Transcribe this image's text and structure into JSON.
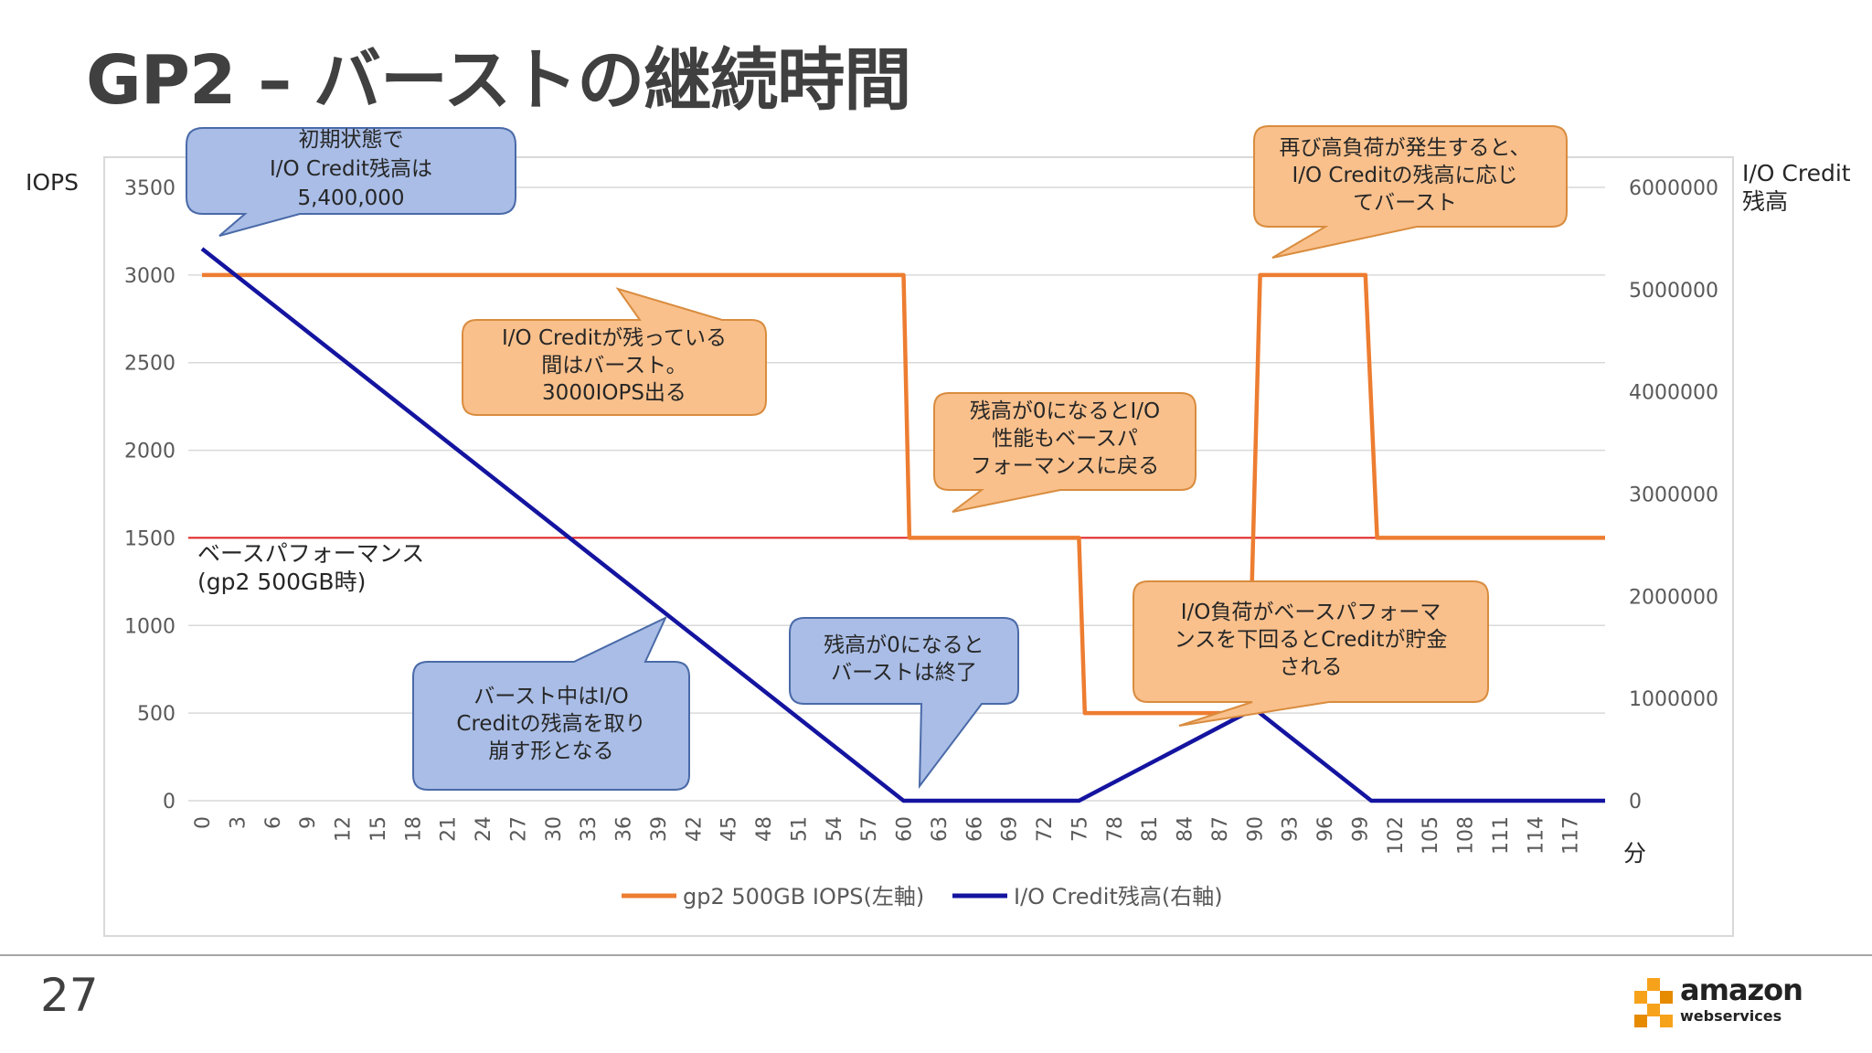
{
  "slide": {
    "title": "GP2 – バーストの継続時間",
    "page_number": "27"
  },
  "logo": {
    "word1": "amazon",
    "word2": "webservices"
  },
  "colors": {
    "iops": "#ed7d31",
    "credit": "#1414a0",
    "baseline": "#e02020",
    "callout_orange": "#f9c08c",
    "callout_blue": "#a9bde6"
  },
  "chart_data": {
    "type": "line",
    "left_axis_label": "IOPS",
    "right_axis_label_line1": "I/O Credit",
    "right_axis_label_line2": "残高",
    "x_unit": "分",
    "x_ticks": [
      "0",
      "3",
      "6",
      "9",
      "12",
      "15",
      "18",
      "21",
      "24",
      "27",
      "30",
      "33",
      "36",
      "39",
      "42",
      "45",
      "48",
      "51",
      "54",
      "57",
      "60",
      "63",
      "66",
      "69",
      "72",
      "75",
      "78",
      "81",
      "84",
      "87",
      "90",
      "93",
      "96",
      "99",
      "102",
      "105",
      "108",
      "111",
      "114",
      "117"
    ],
    "xlim": [
      0,
      120
    ],
    "ylim_left": [
      0,
      3500
    ],
    "ylim_right": [
      0,
      6000000
    ],
    "left_ticks": [
      "0",
      "500",
      "1000",
      "1500",
      "2000",
      "2500",
      "3000",
      "3500"
    ],
    "right_ticks": [
      "0",
      "1000000",
      "2000000",
      "3000000",
      "4000000",
      "5000000",
      "6000000"
    ],
    "series": [
      {
        "name": "gp2 500GB IOPS(左軸)",
        "axis": "left",
        "x": [
          0,
          60,
          60.5,
          75,
          75.5,
          89.5,
          90.5,
          99.5,
          100.5,
          120
        ],
        "y": [
          3000,
          3000,
          1500,
          1500,
          500,
          500,
          3000,
          3000,
          1500,
          1500
        ]
      },
      {
        "name": "I/O Credit残高(右軸)",
        "axis": "right",
        "x": [
          0,
          60,
          75,
          90,
          100,
          120
        ],
        "y": [
          5400000,
          0,
          0,
          900000,
          0,
          0
        ]
      }
    ],
    "baseline": {
      "value": 1500,
      "label_line1": "ベースパフォーマンス",
      "label_line2": "(gp2 500GB時)"
    }
  },
  "callouts": {
    "initial": {
      "lines": [
        "初期状態で",
        "I/O Credit残高は",
        "5,400,000"
      ]
    },
    "burst": {
      "lines": [
        "I/O Creditが残っている",
        "間はバースト。",
        "3000IOPS出る"
      ]
    },
    "consume": {
      "lines": [
        "バースト中はI/O",
        "Creditの残高を取り",
        "崩す形となる"
      ]
    },
    "end_burst": {
      "lines": [
        "残高が0になると",
        "バーストは終了"
      ]
    },
    "base_perf": {
      "lines": [
        "残高が0になるとI/O",
        "性能もベースパ",
        "フォーマンスに戻る"
      ]
    },
    "accumulate": {
      "lines": [
        "I/O負荷がベースパフォーマ",
        "ンスを下回るとCreditが貯金",
        "される"
      ]
    },
    "reburst": {
      "lines": [
        "再び高負荷が発生すると、",
        "I/O Creditの残高に応じ",
        "てバースト"
      ]
    }
  }
}
